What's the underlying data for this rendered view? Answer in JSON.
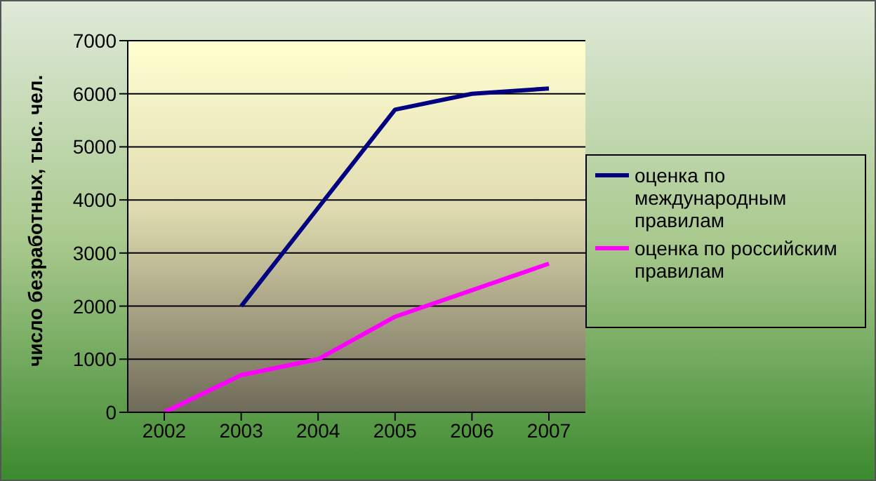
{
  "chart_data": {
    "type": "line",
    "ylabel": "число безработных, тыс. чел.",
    "categories": [
      "2002",
      "2003",
      "2004",
      "2005",
      "2006",
      "2007"
    ],
    "series": [
      {
        "name": "оценка по международным правилам",
        "color": "#000080",
        "values": [
          null,
          2000,
          3850,
          5700,
          6000,
          6100
        ]
      },
      {
        "name": "оценка по российским правилам",
        "color": "#ff00ff",
        "values": [
          0,
          700,
          1000,
          1800,
          2300,
          2800
        ]
      }
    ],
    "ylim": [
      0,
      7000
    ],
    "yticks": [
      0,
      1000,
      2000,
      3000,
      4000,
      5000,
      6000,
      7000
    ],
    "grid": "y",
    "legend": "right",
    "marker": "none",
    "line_style": "solid"
  }
}
